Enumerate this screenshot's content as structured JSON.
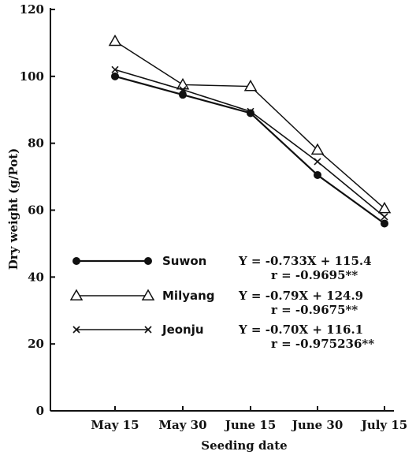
{
  "chart_data": {
    "type": "line",
    "xlabel": "Seeding date",
    "ylabel": "Dry weight (g/Pot)",
    "categories": [
      "May 15",
      "May 30",
      "June 15",
      "June 30",
      "July 15"
    ],
    "ylim": [
      0,
      120
    ],
    "yticks": [
      "0",
      "20",
      "40",
      "60",
      "80",
      "100",
      "120"
    ],
    "grid": false,
    "legend_position": "center-left",
    "series": [
      {
        "name": "Suwon",
        "marker": "filled-circle",
        "values": [
          100,
          94.5,
          89,
          70.5,
          56
        ],
        "equation": "Y = -0.733X + 115.4",
        "r_value": "r = -0.9695**"
      },
      {
        "name": "Milyang",
        "marker": "open-triangle",
        "values": [
          110.5,
          97.5,
          97,
          78,
          60.5
        ],
        "equation": "Y = -0.79X + 124.9",
        "r_value": "r = -0.9675**"
      },
      {
        "name": "Jeonju",
        "marker": "x",
        "values": [
          102,
          96,
          89.5,
          74.5,
          58
        ],
        "equation": "Y = -0.70X + 116.1",
        "r_value": "r = -0.975236**"
      }
    ]
  }
}
